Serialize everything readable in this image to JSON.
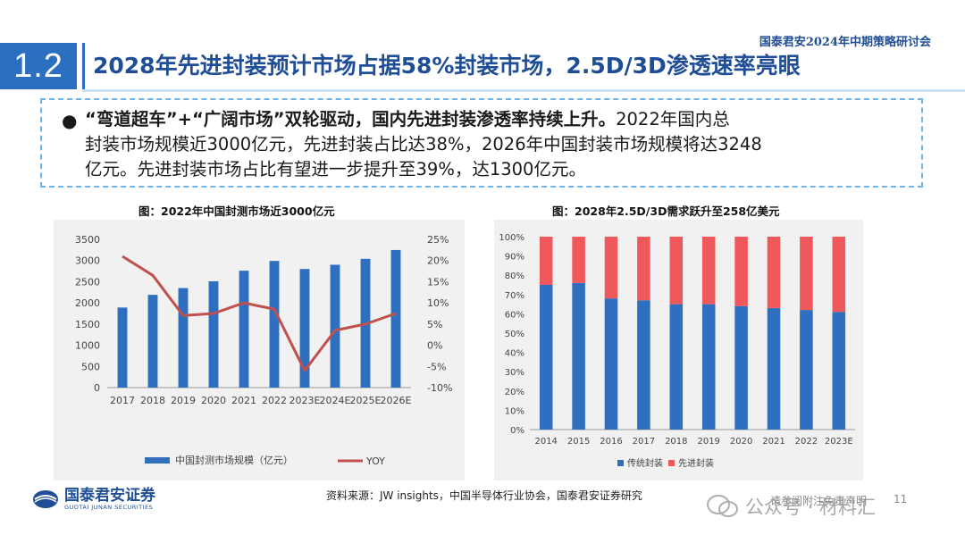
{
  "header": {
    "conference": "国泰君安2024年中期策略研讨会",
    "section_number": "1.2",
    "title": "2028年先进封装预计市场占据58%封装市场，2.5D/3D渗透速率亮眼"
  },
  "bullet": {
    "bold_text": "“弯道超车”+“广阔市场”双轮驱动，国内先进封装渗透率持续上升。",
    "text_line1_rest": "2022年国内总",
    "text_line2": "封装市场规模近3000亿元，先进封装占比达38%，2026年中国封装市场规模将达3248",
    "text_line3": "亿元。先进封装市场占比有望进一步提升至39%，达1300亿元。"
  },
  "chart_data": [
    {
      "type": "bar",
      "title": "图：2022年中国封测市场近3000亿元",
      "categories": [
        "2017",
        "2018",
        "2019",
        "2020",
        "2021",
        "2022",
        "2023E",
        "2024E",
        "2025E",
        "2026E"
      ],
      "series": [
        {
          "name": "中国封测市场规模（亿元）",
          "type": "bar",
          "axis": "left",
          "values": [
            1890,
            2190,
            2350,
            2510,
            2760,
            2990,
            2800,
            2900,
            3040,
            3248
          ]
        },
        {
          "name": "YOY",
          "type": "line",
          "axis": "right",
          "values": [
            21,
            16.5,
            7,
            7.5,
            10,
            8.5,
            -6,
            3.5,
            5,
            7.5
          ]
        }
      ],
      "y_left": {
        "min": 0,
        "max": 3500,
        "ticks": [
          "0",
          "500",
          "1000",
          "1500",
          "2000",
          "2500",
          "3000",
          "3500"
        ]
      },
      "y_right": {
        "min": -10,
        "max": 25,
        "ticks": [
          "-10%",
          "-5%",
          "0%",
          "5%",
          "10%",
          "15%",
          "20%",
          "25%"
        ]
      },
      "colors": {
        "bar": "#2e6fbf",
        "line": "#c0504d"
      }
    },
    {
      "type": "bar",
      "stacked": true,
      "title": "图：2028年2.5D/3D需求跃升至258亿美元",
      "categories": [
        "2014",
        "2015",
        "2016",
        "2017",
        "2018",
        "2019",
        "2020",
        "2021",
        "2022",
        "2023E"
      ],
      "series": [
        {
          "name": "传统封装",
          "values": [
            75,
            76,
            68,
            67,
            65,
            65,
            64,
            63,
            62,
            61
          ]
        },
        {
          "name": "先进封装",
          "values": [
            25,
            24,
            32,
            33,
            35,
            35,
            36,
            37,
            38,
            39
          ]
        }
      ],
      "y": {
        "min": 0,
        "max": 100,
        "ticks": [
          "0%",
          "10%",
          "20%",
          "30%",
          "40%",
          "50%",
          "60%",
          "70%",
          "80%",
          "90%",
          "100%"
        ]
      },
      "colors": {
        "traditional": "#2e6fbf",
        "advanced": "#f0595c"
      }
    }
  ],
  "footer": {
    "logo_cn": "国泰君安证券",
    "logo_en": "GUOTAI JUNAN SECURITIES",
    "source": "资料来源：JW insights，中国半导体行业协会，国泰君安证券研究",
    "disclaimer": "请参阅附注免责声明",
    "page": "11",
    "watermark": "公众号 · 材料汇"
  }
}
